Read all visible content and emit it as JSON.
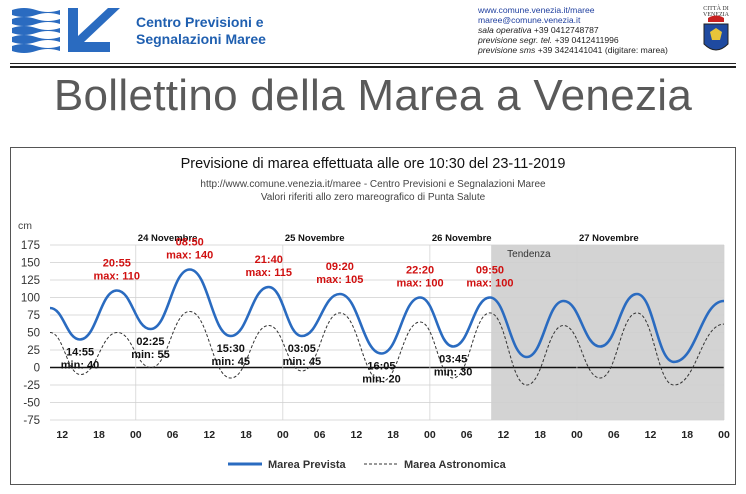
{
  "header": {
    "org_line1": "Centro Previsioni e",
    "org_line2": "Segnalazioni Maree",
    "website": "www.comune.venezia.it/maree",
    "email": "maree@comune.venezia.it",
    "sala_label": "sala operativa",
    "sala_phone": "+39 0412748787",
    "segr_label": "previsione segr. tel.",
    "segr_phone": "+39 0412411996",
    "sms_label": "previsione sms",
    "sms_phone": "+39 3424141041 (digitare: marea)",
    "crest_label": "CITTÀ DI VENEZIA"
  },
  "page_title": "Bollettino della Marea a Venezia",
  "colors": {
    "forecast": "#2a6bc0",
    "astronomic": "#333333",
    "peak_label": "#d01010",
    "trend_bg": "#d3d3d3"
  },
  "chart_data": {
    "type": "line",
    "title": "Previsione di marea effettuata alle ore 10:30 del 23-11-2019",
    "subtitle1": "http://www.comune.venezia.it/maree - Centro Previsioni e Segnalazioni Maree",
    "subtitle2": "Valori riferiti allo zero mareografico di Punta Salute",
    "ylabel": "cm",
    "ylim": [
      -75,
      175
    ],
    "yticks": [
      175,
      150,
      125,
      100,
      75,
      50,
      25,
      0,
      -25,
      -50,
      -75
    ],
    "xlim_hours": [
      -14,
      96
    ],
    "xtick_labels": [
      "12",
      "18",
      "00",
      "06",
      "12",
      "18",
      "00",
      "06",
      "12",
      "18",
      "00",
      "06",
      "12",
      "18",
      "00",
      "06",
      "12",
      "18",
      "00"
    ],
    "days": [
      "24 Novembre",
      "25 Novembre",
      "26 Novembre",
      "27 Novembre"
    ],
    "trend_label": "Tendenza",
    "trend_start_hour": 58,
    "grid": true,
    "legend": "bottom",
    "series": [
      {
        "name": "Marea Prevista",
        "points": [
          [
            -14,
            85
          ],
          [
            -9.1,
            40
          ],
          [
            -3.1,
            110
          ],
          [
            2.4,
            55
          ],
          [
            8.8,
            140
          ],
          [
            15.5,
            45
          ],
          [
            21.7,
            115
          ],
          [
            27.1,
            45
          ],
          [
            33.3,
            105
          ],
          [
            40.1,
            20
          ],
          [
            46.4,
            100
          ],
          [
            51.8,
            30
          ],
          [
            57.8,
            100
          ],
          [
            63.8,
            15
          ],
          [
            69.8,
            95
          ],
          [
            75.8,
            30
          ],
          [
            81.8,
            105
          ],
          [
            87.8,
            8
          ],
          [
            96,
            95
          ]
        ]
      },
      {
        "name": "Marea Astronomica",
        "points": [
          [
            -14,
            50
          ],
          [
            -9,
            -10
          ],
          [
            -3,
            50
          ],
          [
            2.5,
            0
          ],
          [
            8.8,
            80
          ],
          [
            15.5,
            -15
          ],
          [
            21.7,
            60
          ],
          [
            27.1,
            -5
          ],
          [
            33.3,
            78
          ],
          [
            40.1,
            -20
          ],
          [
            46.4,
            65
          ],
          [
            51.8,
            -15
          ],
          [
            57.8,
            78
          ],
          [
            63.8,
            -25
          ],
          [
            69.8,
            60
          ],
          [
            75.8,
            -15
          ],
          [
            81.8,
            78
          ],
          [
            87.8,
            -25
          ],
          [
            96,
            62
          ]
        ]
      }
    ],
    "annotations": [
      {
        "time": "14:55",
        "label": "min: 40",
        "kind": "min"
      },
      {
        "time": "20:55",
        "label": "max: 110",
        "kind": "max"
      },
      {
        "time": "02:25",
        "label": "min: 55",
        "kind": "min"
      },
      {
        "time": "08:50",
        "label": "max: 140",
        "kind": "max"
      },
      {
        "time": "15:30",
        "label": "min: 45",
        "kind": "min"
      },
      {
        "time": "21:40",
        "label": "max: 115",
        "kind": "max"
      },
      {
        "time": "03:05",
        "label": "min: 45",
        "kind": "min"
      },
      {
        "time": "09:20",
        "label": "max: 105",
        "kind": "max"
      },
      {
        "time": "16:05",
        "label": "min: 20",
        "kind": "min"
      },
      {
        "time": "22:20",
        "label": "max: 100",
        "kind": "max"
      },
      {
        "time": "03:45",
        "label": "min: 30",
        "kind": "min"
      },
      {
        "time": "09:50",
        "label": "max: 100",
        "kind": "max"
      }
    ]
  }
}
